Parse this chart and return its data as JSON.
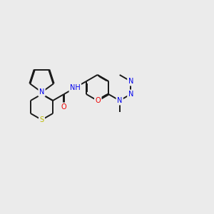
{
  "bg": "#ebebeb",
  "bond_color": "#1a1a1a",
  "lw": 1.4,
  "colors": {
    "N": "#0000ee",
    "O": "#ee0000",
    "S": "#bbbb00",
    "C": "#1a1a1a"
  },
  "fs": 7.0,
  "BL": 0.38,
  "xlim": [
    -0.5,
    5.8
  ],
  "ylim": [
    -0.2,
    4.2
  ]
}
